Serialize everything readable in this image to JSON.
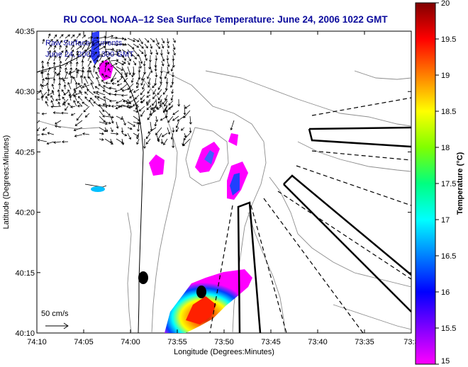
{
  "title": "RU COOL   NOAA–12  Sea Surface Temperature:  June 24, 2006 1022 GMT",
  "annotation": {
    "line1": "Raw Surface Currents",
    "line2": "June 24, 2006 1300 GMT"
  },
  "scale_arrow": {
    "label": "50 cm/s"
  },
  "map": {
    "x_axis_label": "Longitude (Degrees:Minutes)",
    "y_axis_label": "Latitude (Degrees:Minutes)",
    "x_ticks": [
      "74:10",
      "74:05",
      "74:00",
      "73:55",
      "73:50",
      "73:45",
      "73:40",
      "73:35",
      "73:3"
    ],
    "y_ticks": [
      "40:35",
      "40:30",
      "40:25",
      "40:20",
      "40:15",
      "40:10"
    ]
  },
  "colorbar": {
    "label": "Temperature (°C)",
    "ticks": [
      "20",
      "19.5",
      "19",
      "18.5",
      "18",
      "17.5",
      "17",
      "16.5",
      "16",
      "15.5",
      "15"
    ],
    "range": [
      15,
      20
    ],
    "colormap": [
      "#ff00ff",
      "#8000ff",
      "#0000ff",
      "#0080ff",
      "#00ffff",
      "#00ff80",
      "#80ff00",
      "#ffff00",
      "#ff8000",
      "#ff0000",
      "#800000"
    ]
  },
  "colors": {
    "title": "#0a0a9c",
    "contour": "#8c8c8c"
  }
}
